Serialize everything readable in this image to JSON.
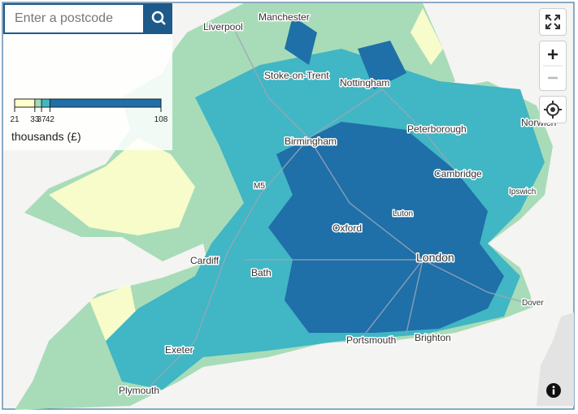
{
  "search": {
    "placeholder": "Enter a postcode"
  },
  "legend": {
    "ticks": [
      21,
      33,
      37,
      42,
      108
    ],
    "colors": [
      "#ffffcc",
      "#a1dab4",
      "#41b6c4",
      "#1f6fa8"
    ],
    "unit": "thousands (£)"
  },
  "places": [
    "Manchester",
    "Liverpool",
    "Stoke-on-Trent",
    "Nottingham",
    "Birmingham",
    "Peterborough",
    "Norwich",
    "Cambridge",
    "Ipswich",
    "M5",
    "Luton",
    "Oxford",
    "London",
    "Cardiff",
    "Bath",
    "Dover",
    "Exeter",
    "Portsmouth",
    "Brighton",
    "Plymouth"
  ]
}
